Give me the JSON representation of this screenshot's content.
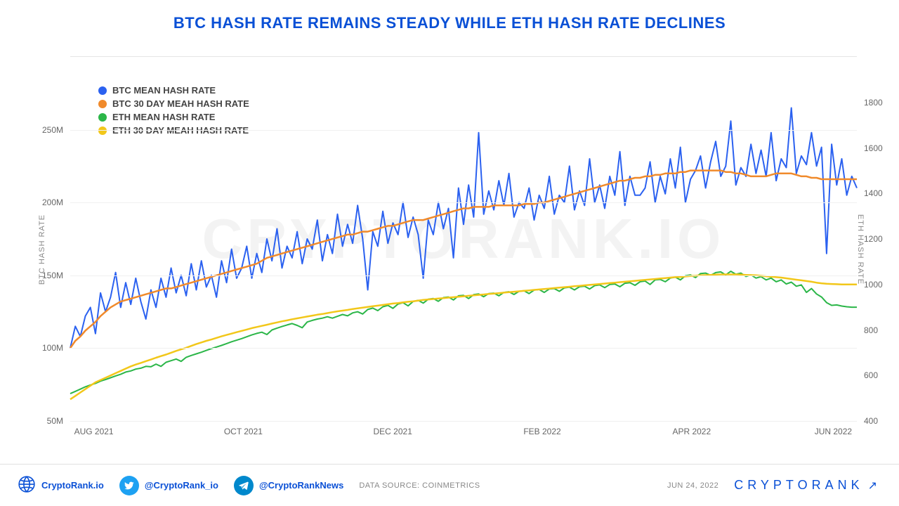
{
  "title": "BTC HASH RATE REMAINS STEADY WHILE ETH HASH RATE DECLINES",
  "watermark": "CRYPTORANK.IO",
  "chart": {
    "type": "line",
    "background_color": "#ffffff",
    "grid_color": "#f0f0f0",
    "axis_text_color": "#666666",
    "x_labels": [
      "AUG 2021",
      "OCT 2021",
      "DEC 2021",
      "FEB 2022",
      "APR 2022",
      "JUN 2022"
    ],
    "x_positions_pct": [
      3,
      22,
      41,
      60,
      79,
      97
    ],
    "left_axis": {
      "title": "BTC HASH RATE",
      "min": 50,
      "max": 300,
      "unit_suffix": "M",
      "ticks": [
        50,
        100,
        150,
        200,
        250
      ]
    },
    "right_axis": {
      "title": "ETH HASH RATE",
      "min": 400,
      "max": 2000,
      "ticks": [
        400,
        600,
        800,
        1000,
        1200,
        1400,
        1600,
        1800
      ]
    },
    "series": {
      "btc_mean": {
        "label": "BTC MEAN HASH RATE",
        "color": "#2b61f0",
        "line_width": 2,
        "axis": "left",
        "values": [
          100,
          115,
          108,
          122,
          128,
          110,
          138,
          125,
          135,
          152,
          128,
          145,
          130,
          148,
          132,
          120,
          140,
          128,
          148,
          135,
          155,
          138,
          150,
          136,
          158,
          140,
          160,
          142,
          150,
          135,
          160,
          145,
          168,
          148,
          155,
          170,
          148,
          165,
          152,
          175,
          160,
          182,
          155,
          170,
          162,
          180,
          158,
          175,
          168,
          188,
          160,
          178,
          165,
          192,
          170,
          185,
          172,
          198,
          175,
          140,
          180,
          170,
          194,
          172,
          186,
          178,
          200,
          176,
          190,
          178,
          148,
          188,
          178,
          200,
          182,
          196,
          162,
          210,
          185,
          212,
          190,
          248,
          192,
          208,
          195,
          215,
          198,
          220,
          190,
          200,
          196,
          210,
          188,
          205,
          196,
          218,
          192,
          205,
          200,
          225,
          195,
          208,
          198,
          230,
          200,
          212,
          196,
          218,
          205,
          235,
          198,
          218,
          205,
          205,
          210,
          228,
          200,
          218,
          206,
          230,
          210,
          238,
          200,
          216,
          222,
          232,
          210,
          228,
          242,
          218,
          225,
          256,
          212,
          224,
          218,
          240,
          220,
          236,
          218,
          248,
          215,
          230,
          224,
          265,
          220,
          232,
          226,
          248,
          225,
          238,
          165,
          240,
          212,
          230,
          205,
          218,
          210
        ]
      },
      "btc_30d": {
        "label": "BTC 30 DAY MEAH HASH RATE",
        "color": "#f08a2b",
        "line_width": 2.5,
        "axis": "left",
        "values": [
          100,
          105,
          108,
          112,
          115,
          118,
          122,
          125,
          128,
          130,
          132,
          133,
          134,
          135,
          136,
          137,
          138,
          139,
          140,
          141,
          141,
          142,
          143,
          144,
          145,
          146,
          147,
          148,
          149,
          150,
          151,
          152,
          153,
          154,
          155,
          156,
          157,
          158,
          160,
          162,
          163,
          164,
          165,
          166,
          167,
          168,
          169,
          170,
          171,
          172,
          173,
          174,
          175,
          176,
          177,
          178,
          178,
          179,
          180,
          180,
          181,
          182,
          183,
          184,
          184,
          185,
          186,
          187,
          188,
          188,
          188,
          189,
          190,
          191,
          192,
          193,
          194,
          195,
          196,
          196,
          197,
          197,
          197,
          197,
          198,
          198,
          198,
          198,
          198,
          198,
          199,
          199,
          199,
          200,
          200,
          201,
          202,
          203,
          204,
          205,
          206,
          207,
          208,
          209,
          210,
          211,
          212,
          213,
          214,
          215,
          215,
          216,
          217,
          217,
          218,
          218,
          219,
          219,
          220,
          220,
          220,
          221,
          221,
          222,
          222,
          222,
          222,
          222,
          222,
          222,
          221,
          221,
          220,
          220,
          219,
          218,
          218,
          218,
          218,
          219,
          220,
          220,
          220,
          220,
          219,
          218,
          218,
          217,
          217,
          216,
          216,
          216,
          216,
          216,
          216,
          216,
          216
        ]
      },
      "eth_mean": {
        "label": "ETH MEAN HASH RATE",
        "color": "#2bb648",
        "line_width": 2,
        "axis": "right",
        "values": [
          520,
          530,
          540,
          550,
          558,
          565,
          575,
          582,
          590,
          598,
          605,
          615,
          620,
          628,
          632,
          640,
          638,
          650,
          640,
          658,
          665,
          672,
          662,
          680,
          688,
          695,
          702,
          710,
          718,
          725,
          732,
          740,
          748,
          755,
          762,
          770,
          778,
          785,
          790,
          780,
          800,
          808,
          815,
          822,
          828,
          820,
          810,
          835,
          842,
          848,
          852,
          858,
          852,
          860,
          868,
          862,
          875,
          880,
          870,
          890,
          896,
          885,
          902,
          908,
          895,
          914,
          920,
          906,
          925,
          930,
          918,
          935,
          938,
          926,
          942,
          945,
          932,
          950,
          952,
          938,
          955,
          958,
          946,
          960,
          962,
          950,
          965,
          968,
          956,
          970,
          972,
          960,
          975,
          978,
          965,
          980,
          982,
          970,
          985,
          988,
          976,
          990,
          992,
          980,
          995,
          998,
          986,
          1000,
          1002,
          990,
          1005,
          1008,
          996,
          1012,
          1015,
          1000,
          1020,
          1022,
          1012,
          1028,
          1032,
          1020,
          1038,
          1042,
          1030,
          1048,
          1050,
          1040,
          1052,
          1055,
          1042,
          1058,
          1045,
          1050,
          1035,
          1042,
          1028,
          1034,
          1020,
          1028,
          1012,
          1020,
          1002,
          1010,
          992,
          998,
          965,
          982,
          958,
          945,
          920,
          908,
          910,
          905,
          902,
          900,
          900
        ]
      },
      "eth_30d": {
        "label": "ETH 30 DAY MEAH HASH RATE",
        "color": "#f2c71a",
        "line_width": 2.5,
        "axis": "right",
        "values": [
          495,
          510,
          525,
          540,
          555,
          570,
          580,
          590,
          600,
          610,
          620,
          630,
          640,
          648,
          655,
          663,
          670,
          678,
          685,
          692,
          700,
          708,
          715,
          722,
          730,
          738,
          745,
          752,
          758,
          765,
          772,
          778,
          784,
          790,
          796,
          802,
          808,
          813,
          818,
          823,
          828,
          833,
          838,
          842,
          847,
          851,
          855,
          859,
          863,
          867,
          870,
          874,
          878,
          882,
          885,
          888,
          892,
          895,
          898,
          901,
          904,
          907,
          910,
          913,
          916,
          918,
          921,
          924,
          926,
          929,
          932,
          934,
          936,
          938,
          940,
          942,
          944,
          946,
          948,
          950,
          952,
          954,
          956,
          958,
          960,
          962,
          964,
          966,
          968,
          970,
          972,
          974,
          976,
          978,
          980,
          982,
          984,
          986,
          988,
          990,
          992,
          994,
          996,
          998,
          1000,
          1002,
          1004,
          1006,
          1008,
          1010,
          1012,
          1014,
          1016,
          1018,
          1020,
          1022,
          1024,
          1026,
          1028,
          1030,
          1032,
          1033,
          1035,
          1037,
          1038,
          1040,
          1041,
          1042,
          1043,
          1044,
          1044,
          1044,
          1044,
          1043,
          1042,
          1041,
          1040,
          1038,
          1036,
          1034,
          1032,
          1030,
          1027,
          1024,
          1021,
          1018,
          1015,
          1012,
          1008,
          1005,
          1003,
          1002,
          1001,
          1000,
          1000,
          1000,
          1000
        ]
      }
    },
    "legend_order": [
      "btc_mean",
      "btc_30d",
      "eth_mean",
      "eth_30d"
    ],
    "legend_fontsize": 13,
    "tick_fontsize": 12
  },
  "footer": {
    "website": "CryptoRank.io",
    "twitter": "@CryptoRank_io",
    "telegram": "@CryptoRankNews",
    "data_source": "DATA SOURCE: COINMETRICS",
    "date": "JUN 24, 2022",
    "brand": "CRYPTORANK"
  }
}
